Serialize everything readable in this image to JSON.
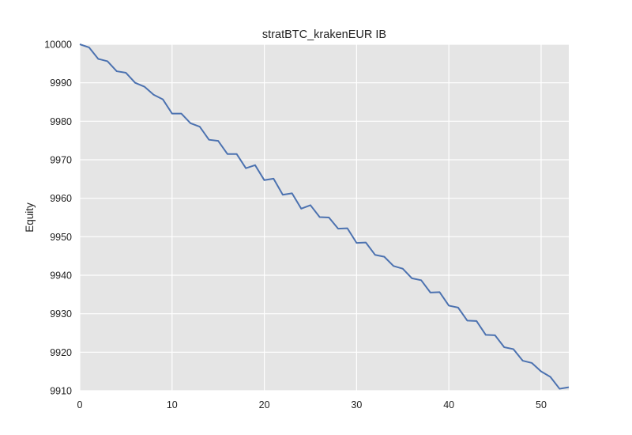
{
  "chart_data": {
    "type": "line",
    "title": "stratBTC_krakenEUR IB",
    "xlabel": "",
    "ylabel": "Equity",
    "xlim": [
      0,
      53
    ],
    "ylim": [
      9910,
      10000
    ],
    "x_ticks": [
      0,
      10,
      20,
      30,
      40,
      50
    ],
    "y_ticks": [
      9910,
      9920,
      9930,
      9940,
      9950,
      9960,
      9970,
      9980,
      9990,
      10000
    ],
    "grid": true,
    "legend": "none",
    "colors": {
      "plot_background": "#e5e5e5",
      "grid": "#ffffff",
      "line": "#4c72b0"
    },
    "series": [
      {
        "x": [
          0,
          1,
          2,
          3,
          4,
          5,
          6,
          7,
          8,
          9,
          10,
          11,
          12,
          13,
          14,
          15,
          16,
          17,
          18,
          19,
          20,
          21,
          22,
          23,
          24,
          25,
          26,
          27,
          28,
          29,
          30,
          31,
          32,
          33,
          34,
          35,
          36,
          37,
          38,
          39,
          40,
          41,
          42,
          43,
          44,
          45,
          46,
          47,
          48,
          49,
          50,
          51,
          52,
          53
        ],
        "y": [
          10000,
          9999.2,
          9996.2,
          9995.6,
          9993,
          9992.6,
          9990,
          9989,
          9986.9,
          9985.7,
          9982,
          9982,
          9979.5,
          9978.6,
          9975.2,
          9974.9,
          9971.5,
          9971.5,
          9967.8,
          9968.6,
          9964.7,
          9965.1,
          9960.9,
          9961.3,
          9957.3,
          9958.2,
          9955.1,
          9955,
          9952.1,
          9952.2,
          9948.4,
          9948.5,
          9945.3,
          9944.8,
          9942.4,
          9941.7,
          9939.2,
          9938.7,
          9935.5,
          9935.6,
          9932.1,
          9931.6,
          9928.2,
          9928.1,
          9924.5,
          9924.4,
          9921.3,
          9920.8,
          9917.8,
          9917.2,
          9915,
          9913.6,
          9910.5,
          9910.9
        ]
      }
    ]
  }
}
